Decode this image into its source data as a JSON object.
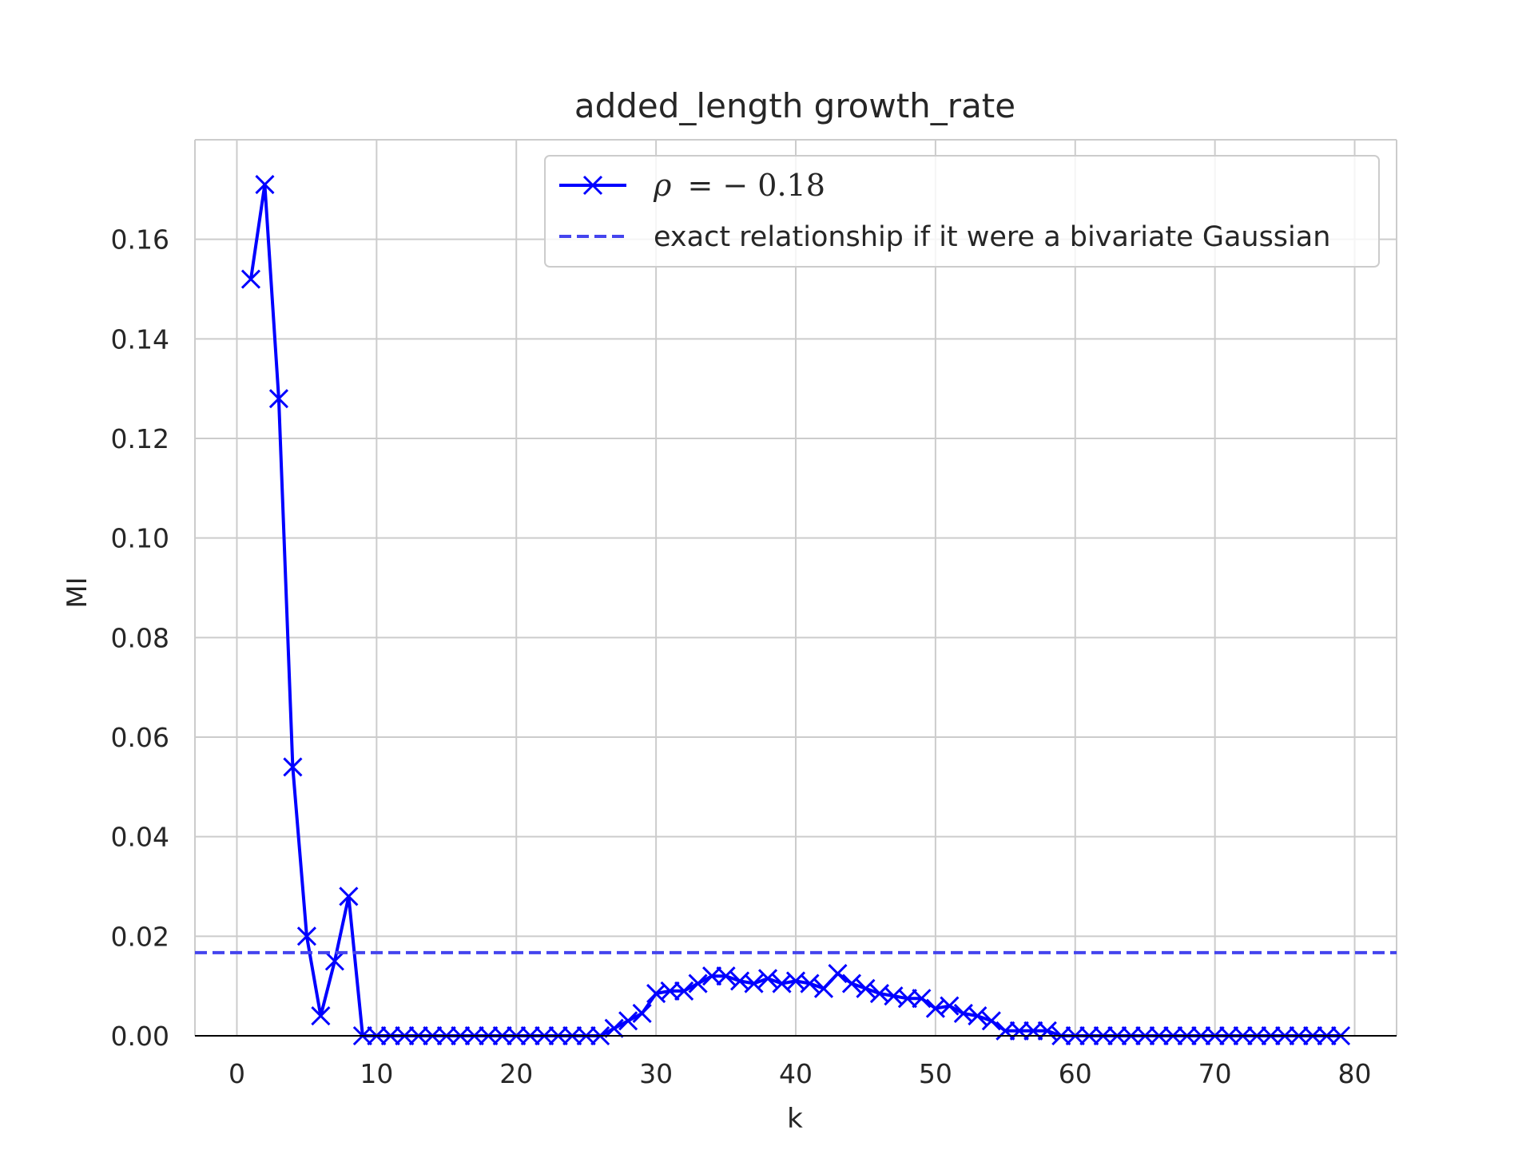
{
  "chart_data": {
    "type": "line",
    "title": "added_length growth_rate",
    "xlabel": "k",
    "ylabel": "MI",
    "xlim": [
      -3,
      83
    ],
    "ylim": [
      0,
      0.18
    ],
    "xticks": [
      0,
      10,
      20,
      30,
      40,
      50,
      60,
      70,
      80
    ],
    "yticks": [
      0.0,
      0.02,
      0.04,
      0.06,
      0.08,
      0.1,
      0.12,
      0.14,
      0.16
    ],
    "ytick_labels": [
      "0.00",
      "0.02",
      "0.04",
      "0.06",
      "0.08",
      "0.10",
      "0.12",
      "0.14",
      "0.16"
    ],
    "xtick_labels": [
      "0",
      "10",
      "20",
      "30",
      "40",
      "50",
      "60",
      "70",
      "80"
    ],
    "grid": true,
    "legend_position": "top-right",
    "series": [
      {
        "name": "ρ = −0.18",
        "legend_label_prefix": "ρ",
        "legend_label_value": "= − 0.18",
        "color": "#0000ff",
        "marker": "x",
        "style": "solid",
        "x": [
          1,
          2,
          3,
          4,
          5,
          6,
          7,
          8,
          9,
          10,
          11,
          12,
          13,
          14,
          15,
          16,
          17,
          18,
          19,
          20,
          21,
          22,
          23,
          24,
          25,
          26,
          27,
          28,
          29,
          30,
          31,
          32,
          33,
          34,
          35,
          36,
          37,
          38,
          39,
          40,
          41,
          42,
          43,
          44,
          45,
          46,
          47,
          48,
          49,
          50,
          51,
          52,
          53,
          54,
          55,
          56,
          57,
          58,
          59,
          60,
          61,
          62,
          63,
          64,
          65,
          66,
          67,
          68,
          69,
          70,
          71,
          72,
          73,
          74,
          75,
          76,
          77,
          78,
          79
        ],
        "y": [
          0.152,
          0.171,
          0.128,
          0.054,
          0.02,
          0.004,
          0.015,
          0.028,
          0,
          0,
          0,
          0,
          0,
          0,
          0,
          0,
          0,
          0,
          0,
          0,
          0,
          0,
          0,
          0,
          0,
          0,
          0.0015,
          0.003,
          0.0045,
          0.0085,
          0.009,
          0.009,
          0.0105,
          0.012,
          0.012,
          0.011,
          0.0105,
          0.0115,
          0.0105,
          0.011,
          0.0105,
          0.0095,
          0.0125,
          0.0105,
          0.0095,
          0.0085,
          0.008,
          0.0075,
          0.0075,
          0.0055,
          0.006,
          0.0045,
          0.004,
          0.003,
          0.001,
          0.001,
          0.001,
          0.001,
          0,
          0,
          0,
          0,
          0,
          0,
          0,
          0,
          0,
          0,
          0,
          0,
          0,
          0,
          0,
          0,
          0,
          0,
          0,
          0,
          0
        ]
      },
      {
        "name": "exact relationship if it were a bivariate Gaussian",
        "color": "#4444ee",
        "style": "dashed",
        "y_constant": 0.0167
      }
    ]
  }
}
